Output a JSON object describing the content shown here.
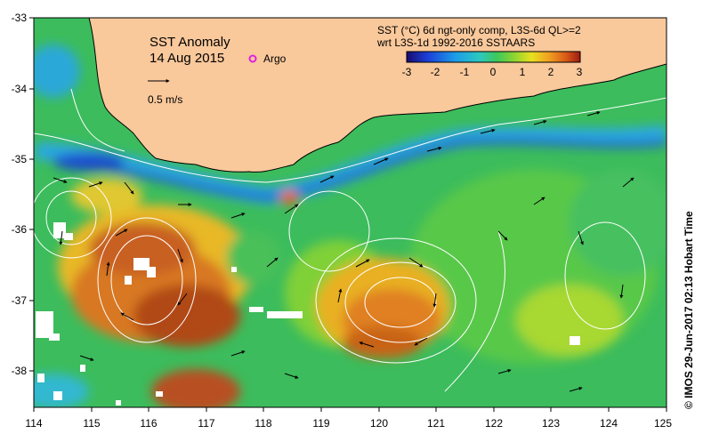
{
  "map": {
    "title": "SST Anomaly",
    "date": "14 Aug 2015",
    "argo_label": "Argo",
    "scale_label": "0.5 m/s",
    "colorbar_title_line1": "SST (°C) 6d ngt-only comp, L3S-6d QL>=2",
    "colorbar_title_line2": "wrt L3S-1d 1992-2016 SSTAARS",
    "colorbar_ticks": [
      "-3",
      "-2",
      "-1",
      "0",
      "1",
      "2",
      "3"
    ],
    "colorbar_colors": [
      "#1a0a6e",
      "#1c3fd8",
      "#1c9ce8",
      "#2cc8c0",
      "#3cc85a",
      "#8ed430",
      "#e8e020",
      "#f0a020",
      "#d85818",
      "#9c1a10"
    ],
    "credit": "© IMOS 29-Jun-2017 02:13 Hobart Time",
    "x_ticks": [
      "114",
      "115",
      "116",
      "117",
      "118",
      "119",
      "120",
      "121",
      "122",
      "123",
      "124",
      "125"
    ],
    "y_ticks": [
      "-33",
      "-34",
      "-35",
      "-36",
      "-37",
      "-38"
    ],
    "land_color": "#f9c89b",
    "ocean_color": "#3cbc5c"
  }
}
